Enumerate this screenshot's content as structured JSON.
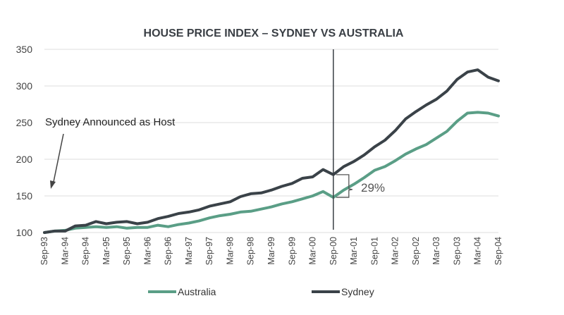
{
  "chart_data": {
    "type": "line",
    "title": "HOUSE PRICE INDEX – SYDNEY VS AUSTRALIA",
    "xlabel": "",
    "ylabel": "",
    "ylim": [
      100,
      350
    ],
    "yticks": [
      "100",
      "150",
      "200",
      "250",
      "300",
      "350"
    ],
    "grid": "horizontal",
    "legend_position": "bottom",
    "x_tick_labels": [
      "Sep-93",
      "Mar-94",
      "Sep-94",
      "Mar-95",
      "Sep-95",
      "Mar-96",
      "Sep-96",
      "Mar-97",
      "Sep-97",
      "Mar-98",
      "Sep-98",
      "Mar-99",
      "Sep-99",
      "Mar-00",
      "Sep-00",
      "Mar-01",
      "Sep-01",
      "Mar-02",
      "Sep-02",
      "Mar-03",
      "Sep-03",
      "Mar-04",
      "Sep-04"
    ],
    "series": [
      {
        "name": "Australia",
        "color": "#5a9e86",
        "values": [
          100,
          102,
          103,
          106,
          107,
          108,
          107,
          108,
          106,
          107,
          107,
          110,
          108,
          111,
          113,
          116,
          120,
          123,
          125,
          128,
          129,
          132,
          135,
          139,
          142,
          146,
          150,
          156,
          148,
          158,
          166,
          175,
          185,
          190,
          198,
          207,
          214,
          220,
          229,
          238,
          252,
          263,
          264,
          263,
          259
        ]
      },
      {
        "name": "Sydney",
        "color": "#3a4248",
        "values": [
          100,
          102,
          102,
          109,
          110,
          115,
          112,
          114,
          115,
          112,
          114,
          119,
          122,
          126,
          128,
          131,
          136,
          139,
          142,
          149,
          153,
          154,
          158,
          163,
          167,
          174,
          176,
          186,
          179,
          190,
          197,
          206,
          217,
          226,
          239,
          255,
          265,
          274,
          282,
          293,
          309,
          319,
          322,
          312,
          307
        ]
      }
    ],
    "annotations": {
      "event_label": "Sydney Announced as Host",
      "gap_label": "29%"
    }
  }
}
